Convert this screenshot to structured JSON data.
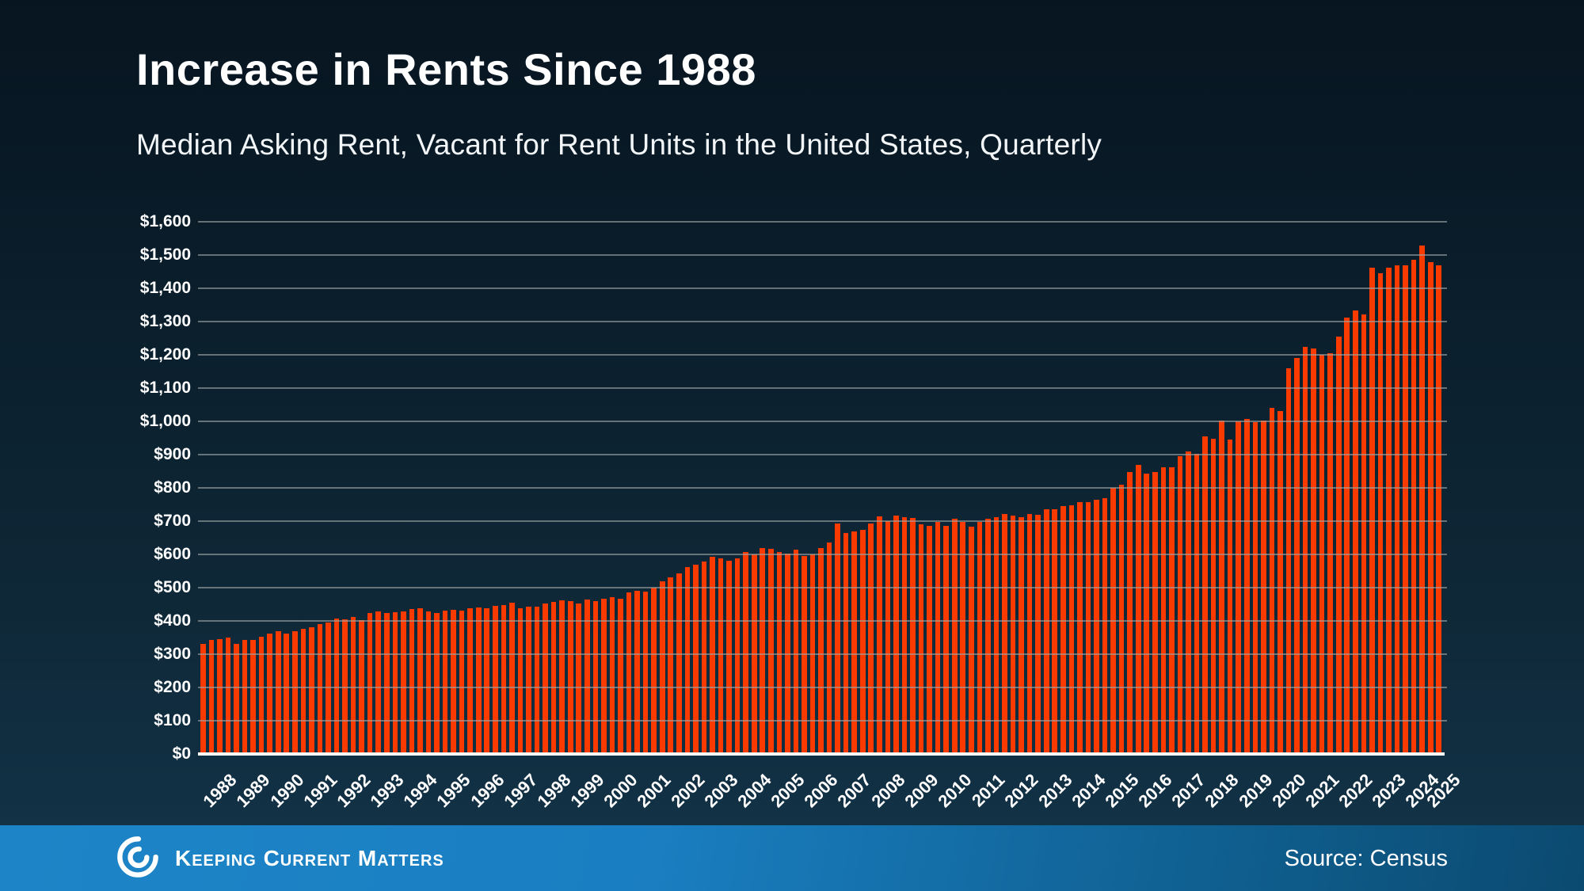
{
  "header": {
    "title": "Increase in Rents Since 1988",
    "subtitle": "Median Asking Rent, Vacant for Rent Units in the United States, Quarterly"
  },
  "footer": {
    "brand": "Keeping Current Matters",
    "source": "Source: Census"
  },
  "colors": {
    "bar": "#fb3a00",
    "background_top": "#071520",
    "background_bottom": "#143449",
    "gridline": "#9ea5a5",
    "axis_line": "#ffffff",
    "text": "#ffffff",
    "footer_blue_left": "#1d85c7",
    "footer_blue_right": "#0b4a70"
  },
  "chart_data": {
    "type": "bar",
    "title": "Increase in Rents Since 1988",
    "subtitle": "Median Asking Rent, Vacant for Rent Units in the United States, Quarterly",
    "frequency": "quarterly",
    "x_start": "1988 Q1",
    "x_end": "2025 Q1",
    "xlabel": "",
    "ylabel": "Median asking rent (USD)",
    "ylim": [
      0,
      1600
    ],
    "y_tick_step": 100,
    "grid": "horizontal",
    "legend": "none",
    "y_tick_labels": [
      "$0",
      "$100",
      "$200",
      "$300",
      "$400",
      "$500",
      "$600",
      "$700",
      "$800",
      "$900",
      "$1,000",
      "$1,100",
      "$1,200",
      "$1,300",
      "$1,400",
      "$1,500",
      "$1,600"
    ],
    "years": [
      1988,
      1989,
      1990,
      1991,
      1992,
      1993,
      1994,
      1995,
      1996,
      1997,
      1998,
      1999,
      2000,
      2001,
      2002,
      2003,
      2004,
      2005,
      2006,
      2007,
      2008,
      2009,
      2010,
      2011,
      2012,
      2013,
      2014,
      2015,
      2016,
      2017,
      2018,
      2019,
      2020,
      2021,
      2022,
      2023,
      2024,
      2025
    ],
    "values": [
      330,
      344,
      346,
      350,
      330,
      344,
      344,
      352,
      361,
      369,
      363,
      368,
      376,
      382,
      390,
      395,
      406,
      404,
      412,
      403,
      424,
      429,
      423,
      427,
      429,
      436,
      437,
      429,
      424,
      430,
      434,
      431,
      438,
      441,
      438,
      445,
      448,
      454,
      437,
      443,
      443,
      453,
      457,
      461,
      460,
      452,
      464,
      460,
      467,
      472,
      467,
      486,
      490,
      487,
      501,
      518,
      531,
      543,
      563,
      570,
      578,
      594,
      589,
      582,
      589,
      608,
      599,
      619,
      617,
      606,
      602,
      614,
      595,
      599,
      620,
      635,
      693,
      665,
      668,
      674,
      694,
      715,
      700,
      717,
      711,
      709,
      690,
      685,
      698,
      686,
      708,
      698,
      683,
      697,
      707,
      712,
      721,
      716,
      713,
      722,
      718,
      735,
      736,
      746,
      748,
      756,
      756,
      764,
      770,
      800,
      810,
      848,
      870,
      843,
      847,
      862,
      862,
      895,
      910,
      903,
      954,
      947,
      1003,
      945,
      1001,
      1008,
      997,
      1002,
      1040,
      1030,
      1160,
      1190,
      1225,
      1220,
      1200,
      1205,
      1255,
      1312,
      1334,
      1322,
      1462,
      1445,
      1462,
      1469,
      1470,
      1485,
      1529,
      1478,
      1470
    ]
  }
}
